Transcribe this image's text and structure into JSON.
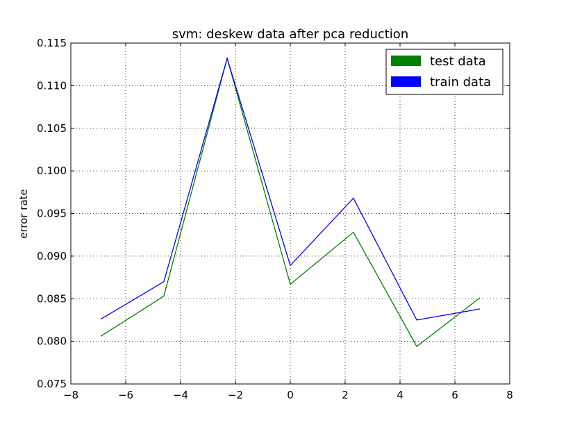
{
  "chart_data": {
    "type": "line",
    "title": "svm: deskew data after pca reduction",
    "xlabel": "",
    "ylabel": "error rate",
    "xlim": [
      -8,
      8
    ],
    "ylim": [
      0.075,
      0.115
    ],
    "x_ticks": [
      -8,
      -6,
      -4,
      -2,
      0,
      2,
      4,
      6,
      8
    ],
    "y_ticks": [
      0.075,
      0.08,
      0.085,
      0.09,
      0.095,
      0.1,
      0.105,
      0.11,
      0.115
    ],
    "x_tick_labels": [
      "−8",
      "−6",
      "−4",
      "−2",
      "0",
      "2",
      "4",
      "6",
      "8"
    ],
    "y_tick_labels": [
      "0.075",
      "0.080",
      "0.085",
      "0.090",
      "0.095",
      "0.100",
      "0.105",
      "0.110",
      "0.115"
    ],
    "grid": true,
    "legend_position": "top-right",
    "x": [
      -6.91,
      -4.61,
      -2.3,
      0.0,
      2.3,
      4.61,
      6.91
    ],
    "series": [
      {
        "name": "test data",
        "color": "#008000",
        "values": [
          0.0806,
          0.0853,
          0.1132,
          0.0867,
          0.0928,
          0.0794,
          0.0851
        ]
      },
      {
        "name": "train data",
        "color": "#0000ff",
        "values": [
          0.0826,
          0.087,
          0.1132,
          0.0889,
          0.0968,
          0.0825,
          0.0838
        ]
      }
    ]
  }
}
